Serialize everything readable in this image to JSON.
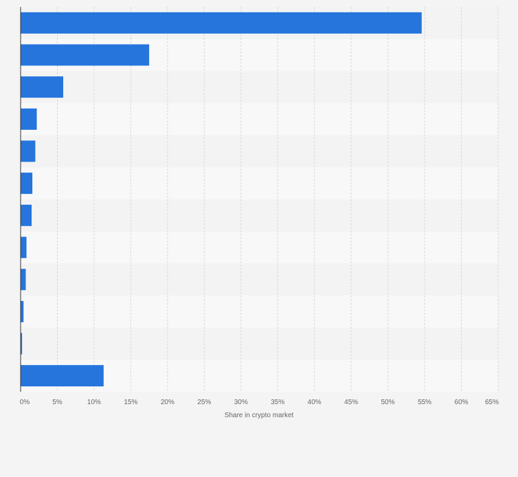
{
  "chart_data": {
    "type": "bar",
    "orientation": "horizontal",
    "categories": [
      "",
      "",
      "",
      "",
      "",
      "",
      "",
      "",
      "",
      "",
      "",
      ""
    ],
    "values": [
      54.6,
      17.5,
      5.8,
      2.2,
      2.0,
      1.6,
      1.5,
      0.8,
      0.7,
      0.4,
      0.2,
      11.3
    ],
    "xlabel": "Share in crypto market",
    "ylabel": "",
    "xlim": [
      0,
      65
    ],
    "ticks": [
      0,
      5,
      10,
      15,
      20,
      25,
      30,
      35,
      40,
      45,
      50,
      55,
      60,
      65
    ],
    "tick_labels": [
      "0%",
      "5%",
      "10%",
      "15%",
      "20%",
      "25%",
      "30%",
      "35%",
      "40%",
      "45%",
      "50%",
      "55%",
      "60%",
      "65%"
    ],
    "grid": true,
    "colors": {
      "bar": "#2575dc",
      "band_dark": "#f3f3f3",
      "band_light": "#f8f8f8",
      "grid": "#d8d8d8",
      "axis": "#333333",
      "text": "#666666",
      "background": "#f4f4f4"
    }
  }
}
